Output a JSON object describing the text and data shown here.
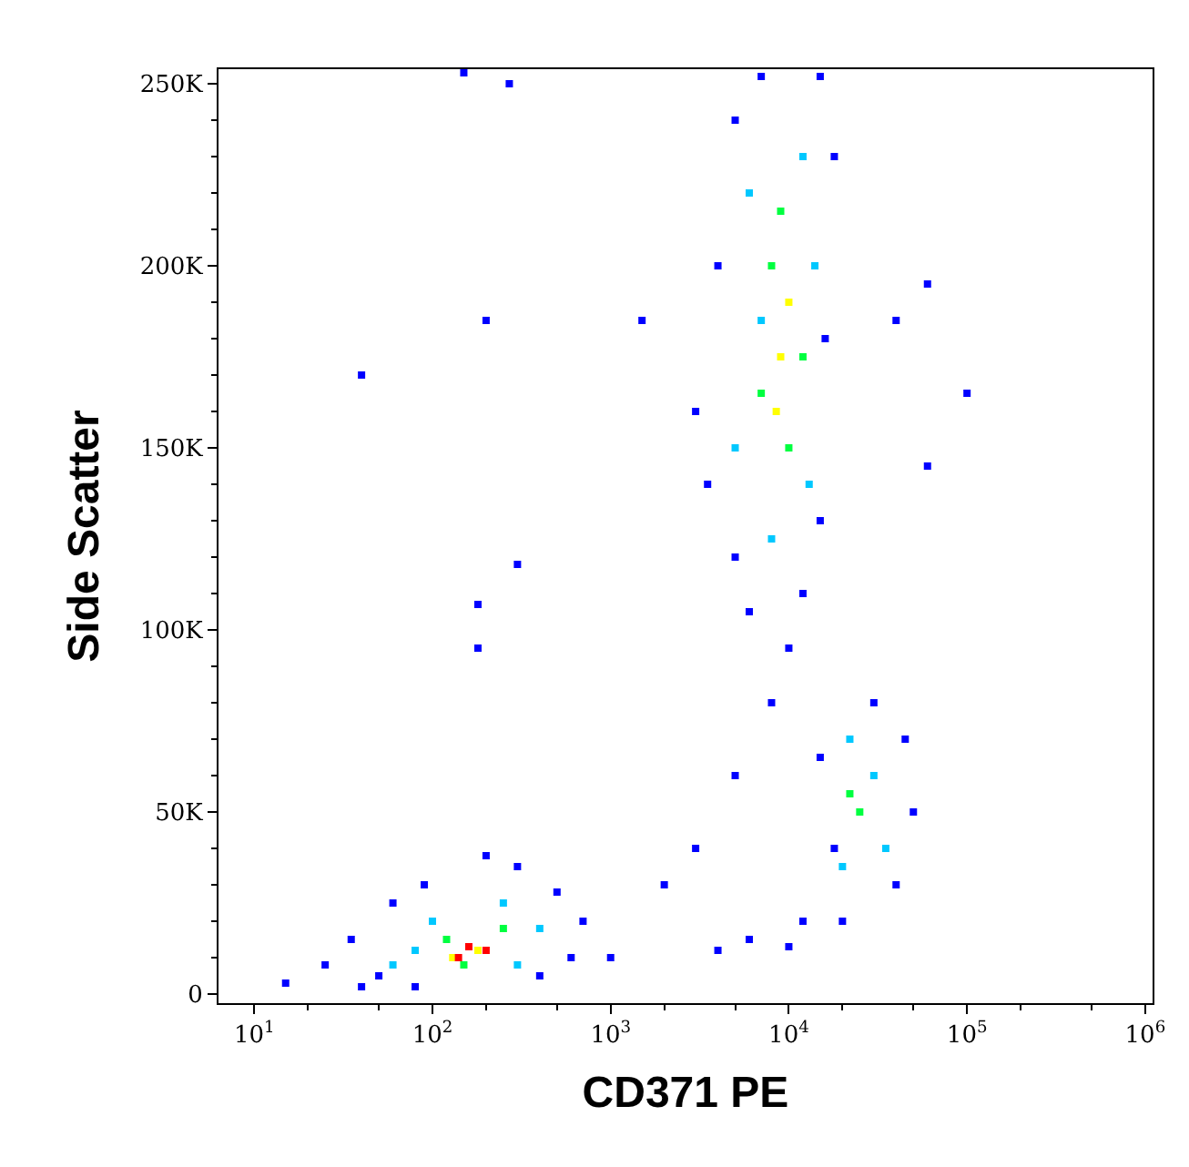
{
  "chart_data": {
    "type": "scatter",
    "xlabel": "CD371 PE",
    "ylabel": "Side Scatter",
    "log": "x",
    "marker": "square",
    "xlim": [
      6.3,
      1100000
    ],
    "ylim": [
      -2500,
      254000
    ],
    "xticks": [
      {
        "value": 10,
        "label": "10$^{1}$"
      },
      {
        "value": 100,
        "label": "10$^{2}$"
      },
      {
        "value": 1000,
        "label": "10$^{3}$"
      },
      {
        "value": 10000,
        "label": "10$^{4}$"
      },
      {
        "value": 100000,
        "label": "10$^{5}$"
      },
      {
        "value": 1000000,
        "label": "10$^{6}$"
      }
    ],
    "yticks": [
      0,
      {
        "value": 50000,
        "label": "50K"
      },
      {
        "value": 100000,
        "label": "100K"
      },
      {
        "value": 150000,
        "label": "150K"
      },
      {
        "value": 200000,
        "label": "200K"
      },
      {
        "value": 250000,
        "label": "250K"
      }
    ],
    "series": [
      {
        "color": "#0000ff",
        "x": [
          15,
          25,
          40,
          35,
          60,
          90,
          200,
          300,
          500,
          700,
          1000,
          50,
          600,
          400,
          80,
          3500,
          4000,
          5000,
          7000,
          15000,
          18000,
          16000,
          15000,
          12000,
          6000,
          3000,
          5000,
          10000,
          8000,
          5000,
          3000,
          2000,
          6000,
          4000,
          10000,
          12000,
          20000,
          40000,
          50000,
          45000,
          30000,
          15000,
          18000,
          150,
          270,
          200,
          40,
          180,
          180,
          300,
          1500,
          60000,
          40000,
          100000,
          60000
        ],
        "values": [
          3000,
          8000,
          2000,
          15000,
          25000,
          30000,
          38000,
          35000,
          28000,
          20000,
          10000,
          5000,
          10000,
          5000,
          2000,
          140000,
          200000,
          240000,
          252000,
          252000,
          230000,
          180000,
          130000,
          110000,
          105000,
          160000,
          120000,
          95000,
          80000,
          60000,
          40000,
          30000,
          15000,
          12000,
          13000,
          20000,
          20000,
          30000,
          50000,
          70000,
          80000,
          65000,
          40000,
          253000,
          250000,
          185000,
          170000,
          107000,
          95000,
          118000,
          185000,
          195000,
          185000,
          165000,
          145000
        ]
      },
      {
        "color": "#00c8ff",
        "x": [
          60,
          100,
          250,
          400,
          80,
          300,
          6000,
          12000,
          5000,
          13000,
          8000,
          7000,
          14000,
          20000,
          30000,
          22000,
          35000
        ],
        "values": [
          8000,
          20000,
          25000,
          18000,
          12000,
          8000,
          220000,
          230000,
          150000,
          140000,
          125000,
          185000,
          200000,
          35000,
          60000,
          70000,
          40000
        ]
      },
      {
        "color": "#00ff40",
        "x": [
          120,
          250,
          150,
          8000,
          10000,
          7000,
          12000,
          9000,
          25000,
          22000
        ],
        "values": [
          15000,
          18000,
          8000,
          200000,
          150000,
          165000,
          175000,
          215000,
          50000,
          55000
        ]
      },
      {
        "color": "#ffff00",
        "x": [
          180,
          130,
          9000,
          8500,
          10000
        ],
        "values": [
          12000,
          10000,
          175000,
          160000,
          190000
        ]
      },
      {
        "color": "#ff0000",
        "x": [
          160,
          200,
          140
        ],
        "values": [
          13000,
          12000,
          10000
        ]
      }
    ]
  }
}
